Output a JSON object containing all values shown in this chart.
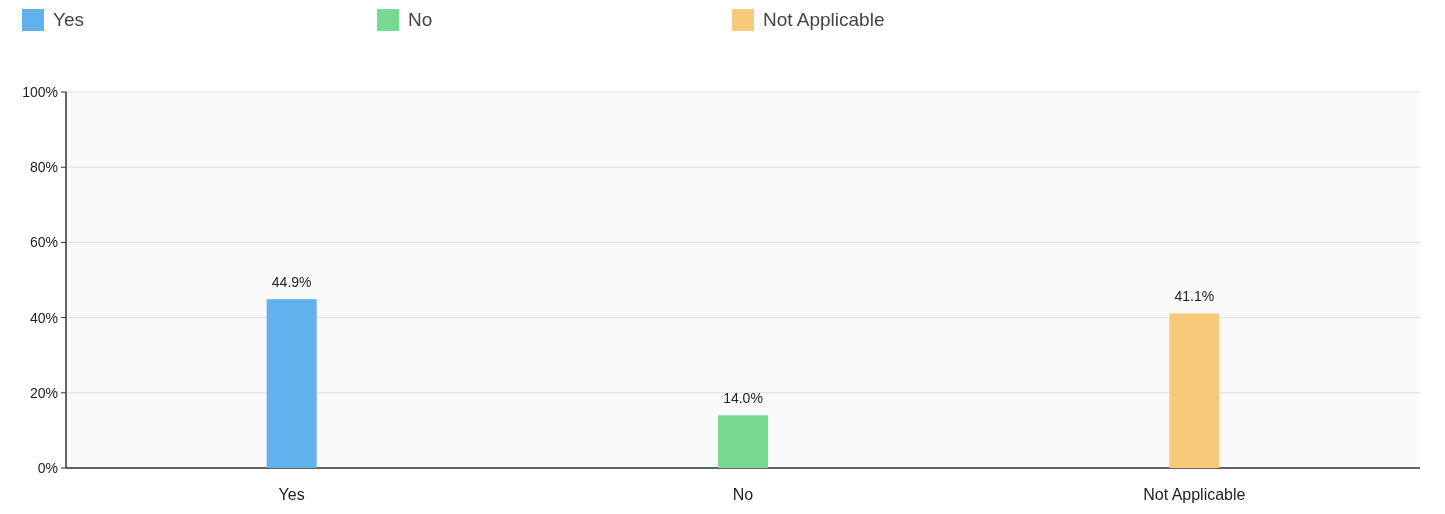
{
  "chart_data": {
    "type": "bar",
    "categories": [
      "Yes",
      "No",
      "Not Applicable"
    ],
    "series": [
      {
        "name": "Yes",
        "color": "#62b0ec",
        "values": [
          44.9,
          null,
          null
        ],
        "value_labels": [
          "44.9%",
          null,
          null
        ]
      },
      {
        "name": "No",
        "color": "#77d98d",
        "values": [
          null,
          14.0,
          null
        ],
        "value_labels": [
          null,
          "14.0%",
          null
        ]
      },
      {
        "name": "Not Applicable",
        "color": "#f7c97a",
        "values": [
          null,
          null,
          41.1
        ],
        "value_labels": [
          null,
          null,
          "41.1%"
        ]
      }
    ],
    "ylim": [
      0,
      100
    ],
    "yticks": [
      {
        "value": 0,
        "label": "0%"
      },
      {
        "value": 20,
        "label": "20%"
      },
      {
        "value": 40,
        "label": "40%"
      },
      {
        "value": 60,
        "label": "60%"
      },
      {
        "value": 80,
        "label": "80%"
      },
      {
        "value": 100,
        "label": "100%"
      }
    ],
    "grid": "y",
    "legend": "top"
  }
}
